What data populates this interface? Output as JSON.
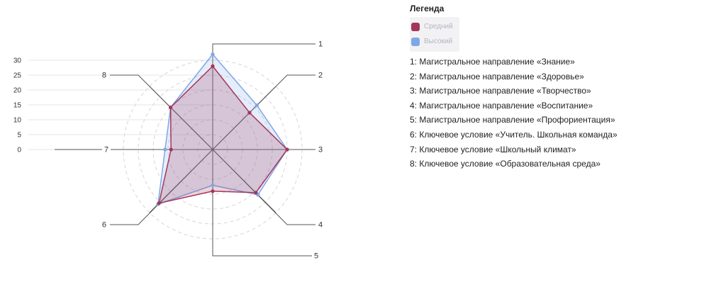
{
  "chart_data": {
    "type": "radar",
    "axis_labels": [
      "1",
      "2",
      "3",
      "4",
      "5",
      "6",
      "7",
      "8"
    ],
    "ticks": [
      0,
      5,
      10,
      15,
      20,
      25,
      30
    ],
    "rmax": 30,
    "series": [
      {
        "name": "Средний",
        "color": "#a3365a",
        "values": [
          28,
          17.5,
          25,
          20.5,
          14,
          25.5,
          14,
          20
        ]
      },
      {
        "name": "Высокий",
        "color": "#7fa7e6",
        "values": [
          32,
          21,
          25,
          21.5,
          12,
          26,
          16,
          20
        ]
      }
    ]
  },
  "legend": {
    "title": "Легенда",
    "descriptions": [
      "1: Магистральное направление «Знание»",
      "2: Магистральное направление «Здоровье»",
      "3: Магистральное направление «Творчество»",
      "4: Магистральное направление «Воспитание»",
      "5: Магистральное направление «Профориентация»",
      "6: Ключевое условие «Учитель. Школьная команда»",
      "7: Ключевое условие «Школьный климат»",
      "8: Ключевое условие «Образовательная среда»"
    ]
  }
}
